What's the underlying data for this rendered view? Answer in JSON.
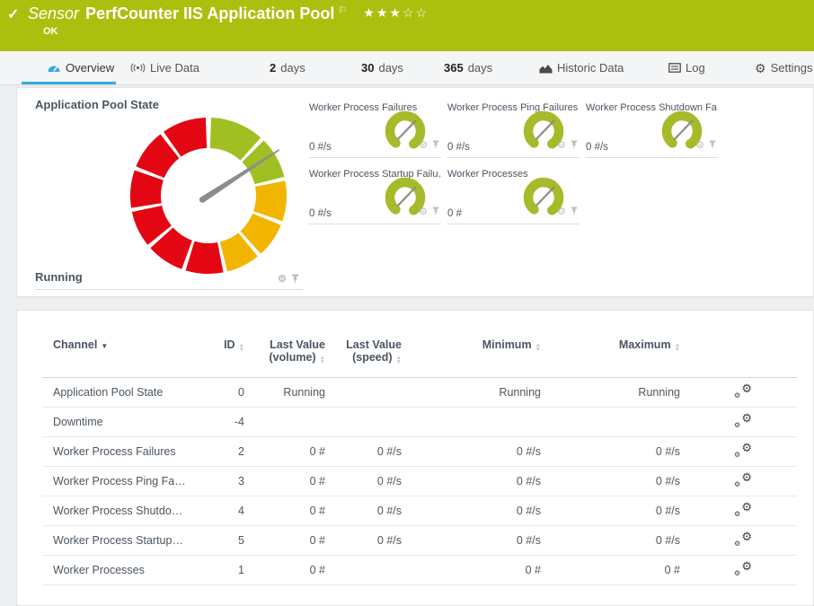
{
  "colors": {
    "header_green": "#abbf0f",
    "segment_colors": {
      "green": "#a0bf22",
      "yellow": "#f1b500",
      "red": "#e30613"
    },
    "small_gauge_green": "#a6ba2a",
    "needle_gray": "#8c8c8c",
    "tab_active_blue": "#3aa9df"
  },
  "icons": {
    "check": "✓",
    "flag": "⚐",
    "star_filled": "★",
    "star_empty": "☆",
    "gear": "⚙",
    "sort_asc": "▲",
    "sort_desc": "▼"
  },
  "header": {
    "kind": "Sensor",
    "title": "PerfCounter IIS Application Pool",
    "status": "OK",
    "rating": {
      "filled": 3,
      "total": 5
    }
  },
  "tabs": [
    {
      "strong": "",
      "label": "Overview",
      "active": true
    },
    {
      "strong": "",
      "label": "Live Data"
    },
    {
      "strong": "2",
      "label": "days"
    },
    {
      "strong": "30",
      "label": "days"
    },
    {
      "strong": "365",
      "label": "days"
    },
    {
      "strong": "",
      "label": "Historic Data"
    },
    {
      "strong": "",
      "label": "Log"
    },
    {
      "strong": "",
      "label": "Settings"
    }
  ],
  "overview": {
    "main_gauge": {
      "title": "Application Pool State",
      "status": "Running",
      "needle_angle_deg": 57,
      "segments": [
        {
          "color": "green",
          "start": 2,
          "end": 42
        },
        {
          "color": "green",
          "start": 45,
          "end": 76
        },
        {
          "color": "yellow",
          "start": 79,
          "end": 109
        },
        {
          "color": "yellow",
          "start": 112,
          "end": 138
        },
        {
          "color": "yellow",
          "start": 141,
          "end": 166
        },
        {
          "color": "red",
          "start": 169,
          "end": 197
        },
        {
          "color": "red",
          "start": 200,
          "end": 228
        },
        {
          "color": "red",
          "start": 231,
          "end": 258
        },
        {
          "color": "red",
          "start": 261,
          "end": 289
        },
        {
          "color": "red",
          "start": 292,
          "end": 322
        },
        {
          "color": "red",
          "start": 325,
          "end": 358
        }
      ]
    },
    "tiles": [
      {
        "title": "Worker Process Failures",
        "value": "0 #/s",
        "needle_angle_deg": 45
      },
      {
        "title": "Worker Process Ping Failures",
        "value": "0 #/s",
        "needle_angle_deg": 45
      },
      {
        "title": "Worker Process Shutdown Fa…",
        "value": "0 #/s",
        "needle_angle_deg": 45
      },
      {
        "title": "Worker Process Startup Failu…",
        "value": "0 #/s",
        "needle_angle_deg": 45
      },
      {
        "title": "Worker Processes",
        "value": "0 #",
        "needle_angle_deg": 45
      }
    ]
  },
  "table": {
    "headers": {
      "channel": "Channel",
      "id": "ID",
      "last_value_volume": "Last Value (volume)",
      "last_value_speed": "Last Value (speed)",
      "minimum": "Minimum",
      "maximum": "Maximum"
    },
    "rows": [
      {
        "channel": "Application Pool State",
        "id": "0",
        "vol": "Running",
        "speed": "",
        "min": "Running",
        "max": "Running"
      },
      {
        "channel": "Downtime",
        "id": "-4",
        "vol": "",
        "speed": "",
        "min": "",
        "max": ""
      },
      {
        "channel": "Worker Process Failures",
        "id": "2",
        "vol": "0 #",
        "speed": "0 #/s",
        "min": "0 #/s",
        "max": "0 #/s"
      },
      {
        "channel": "Worker Process Ping Fa…",
        "id": "3",
        "vol": "0 #",
        "speed": "0 #/s",
        "min": "0 #/s",
        "max": "0 #/s"
      },
      {
        "channel": "Worker Process Shutdo…",
        "id": "4",
        "vol": "0 #",
        "speed": "0 #/s",
        "min": "0 #/s",
        "max": "0 #/s"
      },
      {
        "channel": "Worker Process Startup…",
        "id": "5",
        "vol": "0 #",
        "speed": "0 #/s",
        "min": "0 #/s",
        "max": "0 #/s"
      },
      {
        "channel": "Worker Processes",
        "id": "1",
        "vol": "0 #",
        "speed": "",
        "min": "0 #",
        "max": "0 #"
      }
    ]
  }
}
